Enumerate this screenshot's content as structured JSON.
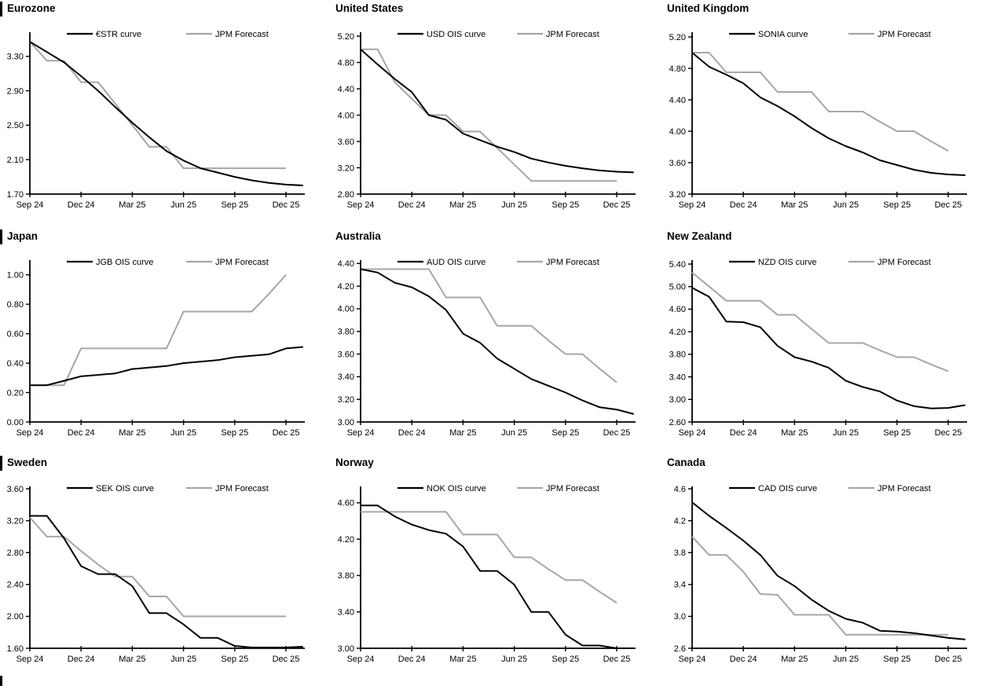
{
  "page": {
    "background": "#ffffff",
    "text_color": "#000000",
    "forecast_gray": "#a6a6a6"
  },
  "chart_data": [
    {
      "title": "Eurozone",
      "type": "line",
      "x_labels": [
        "Sep 24",
        "Dec 24",
        "Mar 25",
        "Jun 25",
        "Sep 25",
        "Dec 25"
      ],
      "ylim": [
        1.7,
        3.58
      ],
      "yticks": [
        1.7,
        2.1,
        2.5,
        2.9,
        3.3
      ],
      "ytick_decimals": 2,
      "grid": false,
      "legend_position": "top-center",
      "series": [
        {
          "name": "€STR curve",
          "color": "#000000",
          "values": [
            3.47,
            3.35,
            3.23,
            3.07,
            2.9,
            2.71,
            2.53,
            2.36,
            2.2,
            2.09,
            2.0,
            1.95,
            1.9,
            1.86,
            1.83,
            1.81,
            1.8
          ]
        },
        {
          "name": "JPM Forecast",
          "color": "#a6a6a6",
          "values": [
            3.47,
            3.25,
            3.25,
            3.0,
            3.0,
            2.75,
            2.5,
            2.25,
            2.25,
            2.0,
            2.0,
            2.0,
            2.0,
            2.0,
            2.0,
            2.0
          ]
        }
      ]
    },
    {
      "title": "United States",
      "type": "line",
      "x_labels": [
        "Sep 24",
        "Dec 24",
        "Mar 25",
        "Jun 25",
        "Sep 25",
        "Dec 25"
      ],
      "ylim": [
        2.8,
        5.26
      ],
      "yticks": [
        2.8,
        3.2,
        3.6,
        4.0,
        4.4,
        4.8,
        5.2
      ],
      "ytick_decimals": 2,
      "grid": false,
      "legend_position": "top-center",
      "series": [
        {
          "name": "USD OIS curve",
          "color": "#000000",
          "values": [
            5.0,
            4.77,
            4.55,
            4.35,
            4.0,
            3.93,
            3.72,
            3.62,
            3.52,
            3.44,
            3.34,
            3.28,
            3.23,
            3.19,
            3.16,
            3.14,
            3.13
          ]
        },
        {
          "name": "JPM Forecast",
          "color": "#a6a6a6",
          "values": [
            5.0,
            5.0,
            4.5,
            4.25,
            4.0,
            4.0,
            3.75,
            3.75,
            3.5,
            3.25,
            3.0,
            3.0,
            3.0,
            3.0,
            3.0,
            3.0
          ]
        }
      ]
    },
    {
      "title": "United Kingdom",
      "type": "line",
      "x_labels": [
        "Sep 24",
        "Dec 24",
        "Mar 25",
        "Jun 25",
        "Sep 25",
        "Dec 25"
      ],
      "ylim": [
        3.2,
        5.26
      ],
      "yticks": [
        3.2,
        3.6,
        4.0,
        4.4,
        4.8,
        5.2
      ],
      "ytick_decimals": 2,
      "grid": false,
      "legend_position": "top-center",
      "series": [
        {
          "name": "SONIA curve",
          "color": "#000000",
          "values": [
            5.0,
            4.82,
            4.72,
            4.61,
            4.43,
            4.32,
            4.19,
            4.04,
            3.91,
            3.81,
            3.73,
            3.63,
            3.57,
            3.51,
            3.47,
            3.45,
            3.44
          ]
        },
        {
          "name": "JPM Forecast",
          "color": "#a6a6a6",
          "values": [
            5.0,
            5.0,
            4.75,
            4.75,
            4.75,
            4.5,
            4.5,
            4.5,
            4.25,
            4.25,
            4.25,
            4.12,
            4.0,
            4.0,
            3.87,
            3.75
          ]
        }
      ]
    },
    {
      "title": "Japan",
      "type": "line",
      "x_labels": [
        "Sep 24",
        "Dec 24",
        "Mar 25",
        "Jun 25",
        "Sep 25",
        "Dec 25"
      ],
      "ylim": [
        0.0,
        1.1
      ],
      "yticks": [
        0.0,
        0.2,
        0.4,
        0.6,
        0.8,
        1.0
      ],
      "ytick_decimals": 2,
      "grid": false,
      "legend_position": "top-center",
      "series": [
        {
          "name": "JGB OIS curve",
          "color": "#000000",
          "values": [
            0.25,
            0.25,
            0.28,
            0.31,
            0.32,
            0.33,
            0.36,
            0.37,
            0.38,
            0.4,
            0.41,
            0.42,
            0.44,
            0.45,
            0.46,
            0.5,
            0.51
          ]
        },
        {
          "name": "JPM Forecast",
          "color": "#a6a6a6",
          "values": [
            0.25,
            0.25,
            0.25,
            0.5,
            0.5,
            0.5,
            0.5,
            0.5,
            0.5,
            0.75,
            0.75,
            0.75,
            0.75,
            0.75,
            0.87,
            1.0
          ]
        }
      ]
    },
    {
      "title": "Australia",
      "type": "line",
      "x_labels": [
        "Sep 24",
        "Dec 24",
        "Mar 25",
        "Jun 25",
        "Sep 25",
        "Dec 25"
      ],
      "ylim": [
        3.0,
        4.43
      ],
      "yticks": [
        3.0,
        3.2,
        3.4,
        3.6,
        3.8,
        4.0,
        4.2,
        4.4
      ],
      "ytick_decimals": 2,
      "grid": false,
      "legend_position": "top-center",
      "series": [
        {
          "name": "AUD OIS curve",
          "color": "#000000",
          "values": [
            4.35,
            4.32,
            4.23,
            4.19,
            4.11,
            3.99,
            3.78,
            3.7,
            3.56,
            3.47,
            3.38,
            3.32,
            3.26,
            3.19,
            3.13,
            3.11,
            3.07
          ]
        },
        {
          "name": "JPM Forecast",
          "color": "#a6a6a6",
          "values": [
            4.35,
            4.35,
            4.35,
            4.35,
            4.35,
            4.1,
            4.1,
            4.1,
            3.85,
            3.85,
            3.85,
            3.72,
            3.6,
            3.6,
            3.47,
            3.35
          ]
        }
      ]
    },
    {
      "title": "New Zealand",
      "type": "line",
      "x_labels": [
        "Sep 24",
        "Dec 24",
        "Mar 25",
        "Jun 25",
        "Sep 25",
        "Dec 25"
      ],
      "ylim": [
        2.6,
        5.47
      ],
      "yticks": [
        2.6,
        3.0,
        3.4,
        3.8,
        4.2,
        4.6,
        5.0,
        5.4
      ],
      "ytick_decimals": 2,
      "grid": false,
      "legend_position": "top-center",
      "series": [
        {
          "name": "NZD OIS curve",
          "color": "#000000",
          "values": [
            4.98,
            4.82,
            4.38,
            4.37,
            4.28,
            3.95,
            3.75,
            3.67,
            3.56,
            3.33,
            3.22,
            3.14,
            2.98,
            2.88,
            2.84,
            2.85,
            2.9
          ]
        },
        {
          "name": "JPM Forecast",
          "color": "#a6a6a6",
          "values": [
            5.25,
            5.0,
            4.75,
            4.75,
            4.75,
            4.5,
            4.5,
            4.25,
            4.0,
            4.0,
            4.0,
            3.87,
            3.75,
            3.75,
            3.62,
            3.5
          ]
        }
      ]
    },
    {
      "title": "Sweden",
      "type": "line",
      "x_labels": [
        "Sep 24",
        "Dec 24",
        "Mar 25",
        "Jun 25",
        "Sep 25",
        "Dec 25"
      ],
      "ylim": [
        1.6,
        3.63
      ],
      "yticks": [
        1.6,
        2.0,
        2.4,
        2.8,
        3.2,
        3.6
      ],
      "ytick_decimals": 2,
      "grid": false,
      "legend_position": "top-center",
      "series": [
        {
          "name": "SEK OIS curve",
          "color": "#000000",
          "values": [
            3.26,
            3.26,
            2.98,
            2.63,
            2.53,
            2.53,
            2.38,
            2.04,
            2.04,
            1.9,
            1.73,
            1.73,
            1.63,
            1.61,
            1.61,
            1.61,
            1.62
          ]
        },
        {
          "name": "JPM Forecast",
          "color": "#a6a6a6",
          "values": [
            3.24,
            3.0,
            3.0,
            2.82,
            2.65,
            2.5,
            2.5,
            2.25,
            2.25,
            2.0,
            2.0,
            2.0,
            2.0,
            2.0,
            2.0,
            2.0
          ]
        }
      ]
    },
    {
      "title": "Norway",
      "type": "line",
      "x_labels": [
        "Sep 24",
        "Dec 24",
        "Mar 25",
        "Jun 25",
        "Sep 25",
        "Dec 25"
      ],
      "ylim": [
        3.0,
        4.78
      ],
      "yticks": [
        3.0,
        3.4,
        3.8,
        4.2,
        4.6
      ],
      "ytick_decimals": 2,
      "grid": false,
      "legend_position": "top-center",
      "series": [
        {
          "name": "NOK OIS curve",
          "color": "#000000",
          "values": [
            4.57,
            4.57,
            4.45,
            4.36,
            4.3,
            4.26,
            4.12,
            3.85,
            3.85,
            3.7,
            3.4,
            3.4,
            3.15,
            3.03,
            3.03,
            3.0,
            3.0
          ]
        },
        {
          "name": "JPM Forecast",
          "color": "#a6a6a6",
          "values": [
            4.5,
            4.5,
            4.5,
            4.5,
            4.5,
            4.5,
            4.25,
            4.25,
            4.25,
            4.0,
            4.0,
            3.87,
            3.75,
            3.75,
            3.62,
            3.5
          ]
        }
      ]
    },
    {
      "title": "Canada",
      "type": "line",
      "x_labels": [
        "Sep 24",
        "Dec 24",
        "Mar 25",
        "Jun 25",
        "Sep 25",
        "Dec 25"
      ],
      "ylim": [
        2.6,
        4.63
      ],
      "yticks": [
        2.6,
        3.0,
        3.4,
        3.8,
        4.2,
        4.6
      ],
      "ytick_decimals": 1,
      "grid": false,
      "legend_position": "top-center",
      "series": [
        {
          "name": "CAD OIS curve",
          "color": "#000000",
          "values": [
            4.43,
            4.26,
            4.11,
            3.95,
            3.77,
            3.51,
            3.38,
            3.21,
            3.07,
            2.97,
            2.92,
            2.82,
            2.81,
            2.79,
            2.76,
            2.73,
            2.71
          ]
        },
        {
          "name": "JPM Forecast",
          "color": "#a6a6a6",
          "values": [
            4.0,
            3.77,
            3.77,
            3.56,
            3.28,
            3.27,
            3.02,
            3.02,
            3.02,
            2.77,
            2.77,
            2.77,
            2.77,
            2.77,
            2.77,
            2.77
          ]
        }
      ]
    }
  ]
}
